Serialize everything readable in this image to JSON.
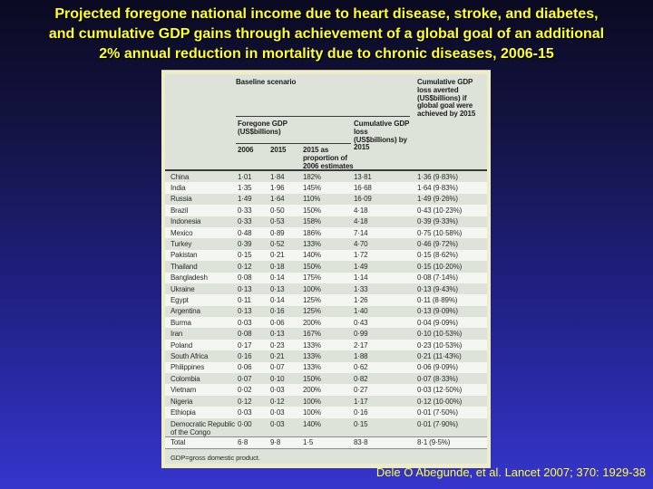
{
  "title": {
    "lines": [
      "Projected foregone national income due to heart disease, stroke, and diabetes,",
      "and cumulative GDP gains through achievement of a global goal of an additional",
      "2% annual reduction in mortality due to chronic diseases, 2006-15"
    ]
  },
  "colors": {
    "background_top": "#0a0a21",
    "background_bottom": "#3535cd",
    "title_yellow": "#ffff2e",
    "panel_cream": "#eeedc8",
    "row_sage": "#dde3d8",
    "row_white": "#f4f6f1"
  },
  "table": {
    "header": {
      "baseline": "Baseline scenario",
      "averted": "Cumulative GDP loss averted (US$billions) if global goal were achieved by 2015",
      "foregone": "Foregone GDP (US$billions)",
      "cumloss": "Cumulative GDP loss (US$billions) by 2015",
      "col_2006": "2006",
      "col_2015": "2015",
      "col_prop": "2015 as proportion of 2006 estimates"
    },
    "rows": [
      {
        "country": "China",
        "y2006": "1·01",
        "y2015": "1·84",
        "prop": "182%",
        "cumloss": "13·81",
        "averted": "1·36 (9·83%)"
      },
      {
        "country": "India",
        "y2006": "1·35",
        "y2015": "1·96",
        "prop": "145%",
        "cumloss": "16·68",
        "averted": "1·64 (9·83%)"
      },
      {
        "country": "Russia",
        "y2006": "1·49",
        "y2015": "1·64",
        "prop": "110%",
        "cumloss": "16·09",
        "averted": "1·49 (9·26%)"
      },
      {
        "country": "Brazil",
        "y2006": "0·33",
        "y2015": "0·50",
        "prop": "150%",
        "cumloss": "4·18",
        "averted": "0·43 (10·23%)"
      },
      {
        "country": "Indonesia",
        "y2006": "0·33",
        "y2015": "0·53",
        "prop": "158%",
        "cumloss": "4·18",
        "averted": "0·39 (9·33%)"
      },
      {
        "country": "Mexico",
        "y2006": "0·48",
        "y2015": "0·89",
        "prop": "186%",
        "cumloss": "7·14",
        "averted": "0·75 (10·58%)"
      },
      {
        "country": "Turkey",
        "y2006": "0·39",
        "y2015": "0·52",
        "prop": "133%",
        "cumloss": "4·70",
        "averted": "0·46 (9·72%)"
      },
      {
        "country": "Pakistan",
        "y2006": "0·15",
        "y2015": "0·21",
        "prop": "140%",
        "cumloss": "1·72",
        "averted": "0·15 (8·62%)"
      },
      {
        "country": "Thailand",
        "y2006": "0·12",
        "y2015": "0·18",
        "prop": "150%",
        "cumloss": "1·49",
        "averted": "0·15 (10·20%)"
      },
      {
        "country": "Bangladesh",
        "y2006": "0·08",
        "y2015": "0·14",
        "prop": "175%",
        "cumloss": "1·14",
        "averted": "0·08 (7·14%)"
      },
      {
        "country": "Ukraine",
        "y2006": "0·13",
        "y2015": "0·13",
        "prop": "100%",
        "cumloss": "1·33",
        "averted": "0·13 (9·43%)"
      },
      {
        "country": "Egypt",
        "y2006": "0·11",
        "y2015": "0·14",
        "prop": "125%",
        "cumloss": "1·26",
        "averted": "0·11 (8·89%)"
      },
      {
        "country": "Argentina",
        "y2006": "0·13",
        "y2015": "0·16",
        "prop": "125%",
        "cumloss": "1·40",
        "averted": "0·13 (9·09%)"
      },
      {
        "country": "Burma",
        "y2006": "0·03",
        "y2015": "0·06",
        "prop": "200%",
        "cumloss": "0·43",
        "averted": "0·04 (9·09%)"
      },
      {
        "country": "Iran",
        "y2006": "0·08",
        "y2015": "0·13",
        "prop": "167%",
        "cumloss": "0·99",
        "averted": "0·10 (10·53%)"
      },
      {
        "country": "Poland",
        "y2006": "0·17",
        "y2015": "0·23",
        "prop": "133%",
        "cumloss": "2·17",
        "averted": "0·23 (10·53%)"
      },
      {
        "country": "South Africa",
        "y2006": "0·16",
        "y2015": "0·21",
        "prop": "133%",
        "cumloss": "1·88",
        "averted": "0·21 (11·43%)"
      },
      {
        "country": "Philippines",
        "y2006": "0·06",
        "y2015": "0·07",
        "prop": "133%",
        "cumloss": "0·62",
        "averted": "0·06 (9·09%)"
      },
      {
        "country": "Colombia",
        "y2006": "0·07",
        "y2015": "0·10",
        "prop": "150%",
        "cumloss": "0·82",
        "averted": "0·07 (8·33%)"
      },
      {
        "country": "Vietnam",
        "y2006": "0·02",
        "y2015": "0·03",
        "prop": "200%",
        "cumloss": "0·27",
        "averted": "0·03 (12·50%)"
      },
      {
        "country": "Nigeria",
        "y2006": "0·12",
        "y2015": "0·12",
        "prop": "100%",
        "cumloss": "1·17",
        "averted": "0·12 (10·00%)"
      },
      {
        "country": "Ethiopia",
        "y2006": "0·03",
        "y2015": "0·03",
        "prop": "100%",
        "cumloss": "0·16",
        "averted": "0·01 (7·50%)"
      },
      {
        "country": "Democratic Republic of the Congo",
        "y2006": "0·00",
        "y2015": "0·03",
        "prop": "140%",
        "cumloss": "0·15",
        "averted": "0·01 (7·90%)"
      }
    ],
    "total": {
      "country": "Total",
      "y2006": "6·8",
      "y2015": "9·8",
      "prop": "1·5",
      "cumloss": "83·8",
      "averted": "8·1 (9·5%)"
    },
    "footnote": "GDP=gross domestic product."
  },
  "citation": "Dele O Abegunde, et al. Lancet 2007; 370: 1929-38"
}
